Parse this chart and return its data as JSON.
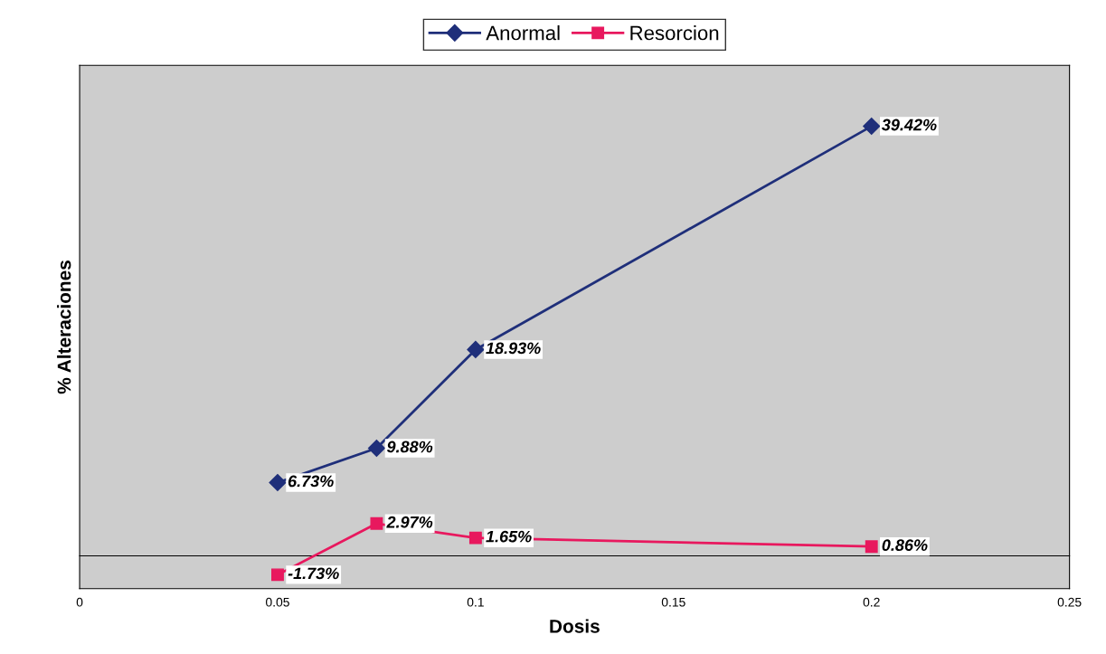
{
  "chart_data": {
    "type": "line",
    "xlabel": "Dosis",
    "ylabel": "% Alteraciones",
    "x": [
      0.05,
      0.075,
      0.1,
      0.2
    ],
    "series": [
      {
        "name": "Anormal",
        "color": "#1f2f7a",
        "marker": "diamond",
        "values": [
          6.73,
          9.88,
          18.93,
          39.42
        ],
        "value_labels": [
          "6.73%",
          "9.88%",
          "18.93%",
          "39.42%"
        ]
      },
      {
        "name": "Resorcion",
        "color": "#e8185e",
        "marker": "square",
        "values": [
          -1.73,
          2.97,
          1.65,
          0.86
        ],
        "value_labels": [
          "-1.73%",
          "2.97%",
          "1.65%",
          "0.86%"
        ]
      }
    ],
    "xlim": [
      0,
      0.25
    ],
    "xticks": [
      0,
      0.05,
      0.1,
      0.15,
      0.2,
      0.25
    ],
    "ylim": [
      -3,
      45
    ],
    "tick_labels": "x",
    "grid": false,
    "legend": "top",
    "line_style": "solid"
  }
}
